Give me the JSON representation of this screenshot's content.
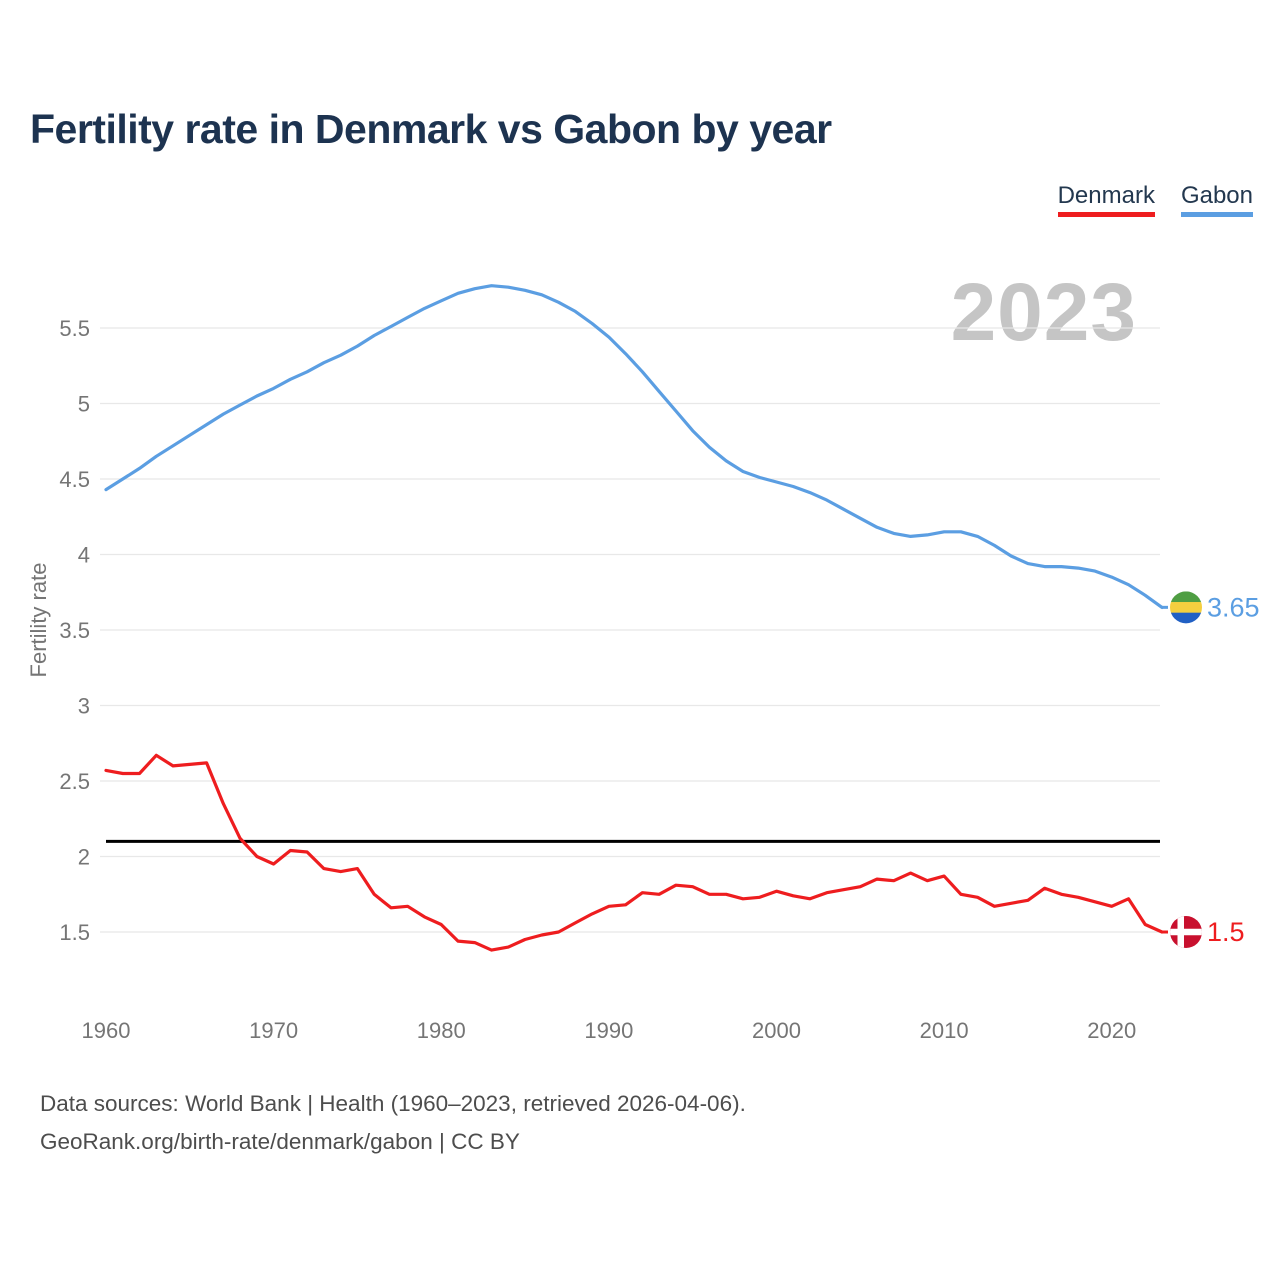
{
  "header": {
    "title": "Fertility rate in Denmark vs Gabon by year"
  },
  "legend": [
    {
      "label": "Denmark",
      "color": "#ee1d1f"
    },
    {
      "label": "Gabon",
      "color": "#5b9ee2"
    }
  ],
  "watermark": "2023",
  "chart_data": {
    "type": "line",
    "title": "Fertility rate in Denmark vs Gabon by year",
    "xlabel": "",
    "ylabel": "Fertility rate",
    "grid": true,
    "legend_position": "top-right",
    "xlim": [
      1960,
      2023
    ],
    "ylim": [
      1.3,
      5.9
    ],
    "x_ticks": [
      1960,
      1970,
      1980,
      1990,
      2000,
      2010,
      2020
    ],
    "y_ticks": [
      1.5,
      2,
      2.5,
      3,
      3.5,
      4,
      4.5,
      5,
      5.5
    ],
    "x": [
      1960,
      1961,
      1962,
      1963,
      1964,
      1965,
      1966,
      1967,
      1968,
      1969,
      1970,
      1971,
      1972,
      1973,
      1974,
      1975,
      1976,
      1977,
      1978,
      1979,
      1980,
      1981,
      1982,
      1983,
      1984,
      1985,
      1986,
      1987,
      1988,
      1989,
      1990,
      1991,
      1992,
      1993,
      1994,
      1995,
      1996,
      1997,
      1998,
      1999,
      2000,
      2001,
      2002,
      2003,
      2004,
      2005,
      2006,
      2007,
      2008,
      2009,
      2010,
      2011,
      2012,
      2013,
      2014,
      2015,
      2016,
      2017,
      2018,
      2019,
      2020,
      2021,
      2022,
      2023
    ],
    "series": [
      {
        "name": "Gabon",
        "color": "#5b9ee2",
        "flag": "gabon",
        "end_label": "3.65",
        "values": [
          4.43,
          4.5,
          4.57,
          4.65,
          4.72,
          4.79,
          4.86,
          4.93,
          4.99,
          5.05,
          5.1,
          5.16,
          5.21,
          5.27,
          5.32,
          5.38,
          5.45,
          5.51,
          5.57,
          5.63,
          5.68,
          5.73,
          5.76,
          5.78,
          5.77,
          5.75,
          5.72,
          5.67,
          5.61,
          5.53,
          5.44,
          5.33,
          5.21,
          5.08,
          4.95,
          4.82,
          4.71,
          4.62,
          4.55,
          4.51,
          4.48,
          4.45,
          4.41,
          4.36,
          4.3,
          4.24,
          4.18,
          4.14,
          4.12,
          4.13,
          4.15,
          4.15,
          4.12,
          4.06,
          3.99,
          3.94,
          3.92,
          3.92,
          3.91,
          3.89,
          3.85,
          3.8,
          3.73,
          3.65
        ]
      },
      {
        "name": "Denmark",
        "color": "#ee1d1f",
        "flag": "denmark",
        "end_label": "1.5",
        "values": [
          2.57,
          2.55,
          2.55,
          2.67,
          2.6,
          2.61,
          2.62,
          2.35,
          2.12,
          2.0,
          1.95,
          2.04,
          2.03,
          1.92,
          1.9,
          1.92,
          1.75,
          1.66,
          1.67,
          1.6,
          1.55,
          1.44,
          1.43,
          1.38,
          1.4,
          1.45,
          1.48,
          1.5,
          1.56,
          1.62,
          1.67,
          1.68,
          1.76,
          1.75,
          1.81,
          1.8,
          1.75,
          1.75,
          1.72,
          1.73,
          1.77,
          1.74,
          1.72,
          1.76,
          1.78,
          1.8,
          1.85,
          1.84,
          1.89,
          1.84,
          1.87,
          1.75,
          1.73,
          1.67,
          1.69,
          1.71,
          1.79,
          1.75,
          1.73,
          1.7,
          1.67,
          1.72,
          1.55,
          1.5
        ]
      }
    ],
    "reference_line": {
      "value": 2.1,
      "color": "#000000"
    }
  },
  "flags": {
    "gabon": {
      "stripes": [
        "#4f9e43",
        "#f4cf3f",
        "#2160c4"
      ]
    },
    "denmark": {
      "background": "#c8102e",
      "cross": "#ffffff"
    }
  },
  "footer": {
    "line1": "Data sources: World Bank | Health (1960–2023, retrieved 2026-04-06).",
    "line2": "GeoRank.org/birth-rate/denmark/gabon | CC BY"
  }
}
